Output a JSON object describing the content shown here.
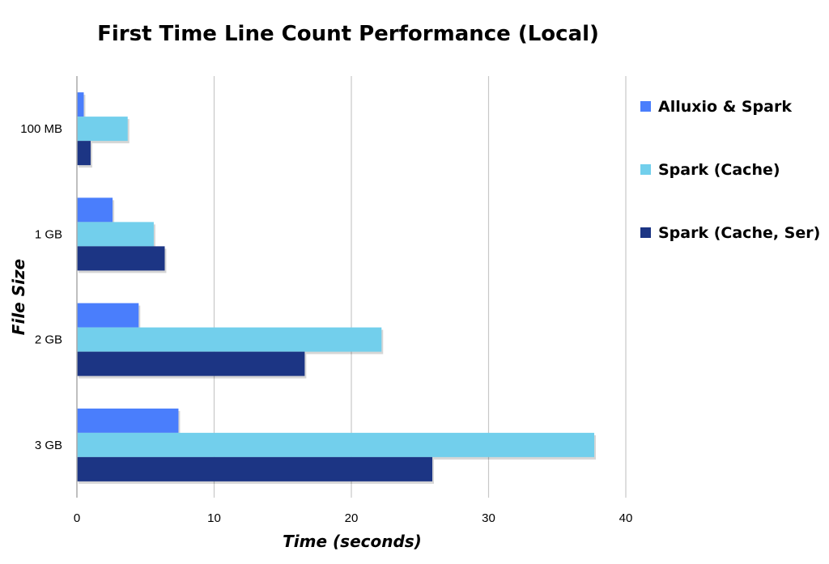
{
  "chart_data": {
    "type": "bar",
    "orientation": "horizontal",
    "title": "First Time Line Count Performance (Local)",
    "xlabel": "Time (seconds)",
    "ylabel": "File Size",
    "categories": [
      "100 MB",
      "1 GB",
      "2 GB",
      "3 GB"
    ],
    "series": [
      {
        "name": "Alluxio & Spark",
        "color": "#4a7efc",
        "values": [
          0.5,
          2.6,
          4.5,
          7.4
        ]
      },
      {
        "name": "Spark (Cache)",
        "color": "#72cfec",
        "values": [
          3.7,
          5.6,
          22.2,
          37.7
        ]
      },
      {
        "name": "Spark (Cache, Ser)",
        "color": "#1c3584",
        "values": [
          1.0,
          6.4,
          16.6,
          25.9
        ]
      }
    ],
    "xlim": [
      0,
      40
    ],
    "xticks": [
      0,
      10,
      20,
      30,
      40
    ],
    "grid": true,
    "legend_position": "right"
  }
}
